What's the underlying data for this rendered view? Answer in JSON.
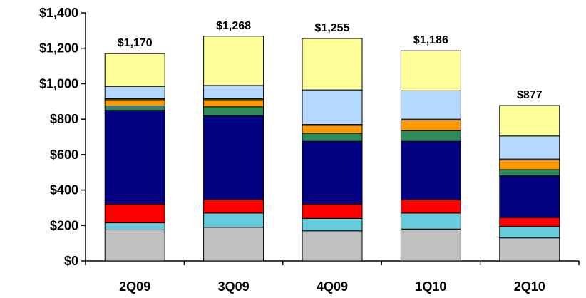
{
  "chart_data": {
    "type": "bar",
    "stacked": true,
    "categories": [
      "2Q09",
      "3Q09",
      "4Q09",
      "1Q10",
      "2Q10"
    ],
    "y_tick_labels": [
      "$0",
      "$200",
      "$400",
      "$600",
      "$800",
      "$1,000",
      "$1,200",
      "$1,400"
    ],
    "ylim": [
      0,
      1400
    ],
    "grid": false,
    "legend": "none",
    "title": "",
    "xlabel": "",
    "ylabel": "",
    "totals": [
      1170,
      1268,
      1255,
      1186,
      877
    ],
    "total_labels": [
      "$1,170",
      "$1,268",
      "$1,255",
      "$1,186",
      "$877"
    ],
    "series": [
      {
        "color": "#C0C0C0",
        "values": [
          175,
          190,
          170,
          180,
          130
        ]
      },
      {
        "color": "#66CCDD",
        "values": [
          40,
          80,
          70,
          90,
          65
        ]
      },
      {
        "color": "#FF0000",
        "values": [
          105,
          75,
          80,
          75,
          50
        ]
      },
      {
        "color": "#000080",
        "values": [
          530,
          475,
          355,
          330,
          235
        ]
      },
      {
        "color": "#2E8B57",
        "values": [
          25,
          50,
          45,
          60,
          35
        ]
      },
      {
        "color": "#FF9900",
        "values": [
          35,
          40,
          45,
          60,
          55
        ]
      },
      {
        "color": "#E8E8E8",
        "values": [
          5,
          5,
          5,
          5,
          5
        ]
      },
      {
        "color": "#B4D8FF",
        "values": [
          70,
          75,
          195,
          160,
          130
        ]
      },
      {
        "color": "#FFFF99",
        "values": [
          185,
          278,
          290,
          226,
          172
        ]
      }
    ]
  }
}
